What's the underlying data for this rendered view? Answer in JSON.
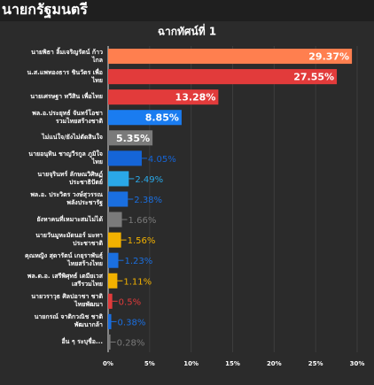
{
  "header": "นายกรัฐมนตรี",
  "chart_data": {
    "type": "bar",
    "orientation": "horizontal",
    "title": "ฉากทัศน์ที่ 1",
    "categories": [
      "นายพิธา ลิ้มเจริญรัตน์ ก้าวไกล",
      "น.ส.แพทองธาร ชินวัตร เพื่อไทย",
      "นายเศรษฐา ทวีสิน เพื่อไทย",
      "พล.อ.ประยุทธ์ จันทร์โอชา รวมไทยสร้างชาติ",
      "ไม่แน่ใจ/ยังไม่ตัดสินใจ",
      "นายอนุทิน ชาญวีรกูล ภูมิใจไทย",
      "นายจุรินทร์ ลักษณวิศิษฏ์ ประชาธิปัตย์",
      "พล.อ. ประวิตร วงษ์สุวรรณ พลังประชารัฐ",
      "ยังหาคนที่เหมาะสมไม่ได้",
      "นายวันมูหะมัดนอร์ มะทา ประชาชาติ",
      "คุณหญิง สุดารัตน์ เกยุราพันธุ์ ไทยสร้างไทย",
      "พล.ต.อ. เสรีพิศุทธ์ เตมียเวส เสรีรวมไทย",
      "นายวราวุธ ศิลปอาชา ชาติไทยพัฒนา",
      "นายกรณ์ จาติกวณิช ชาติพัฒนากล้า",
      "อื่น ๆ ระบุชื่อ..."
    ],
    "values": [
      29.37,
      27.55,
      13.28,
      8.85,
      5.35,
      4.05,
      2.49,
      2.38,
      1.66,
      1.56,
      1.23,
      1.11,
      0.5,
      0.38,
      0.28
    ],
    "value_labels": [
      "29.37%",
      "27.55%",
      "13.28%",
      "8.85%",
      "5.35%",
      "4.05%",
      "2.49%",
      "2.38%",
      "1.66%",
      "1.56%",
      "1.23%",
      "1.11%",
      "0.5%",
      "0.38%",
      "0.28%"
    ],
    "colors": [
      "#ff7f4f",
      "#e23b3b",
      "#e23b3b",
      "#1a7cf0",
      "#7a7a7a",
      "#1565d8",
      "#2aa8e8",
      "#1a6fe0",
      "#7a7a7a",
      "#f2b100",
      "#1a6fe0",
      "#f2b100",
      "#e23b3b",
      "#1a6fe0",
      "#7a7a7a"
    ],
    "xlim": [
      0,
      30
    ],
    "xticks": [
      {
        "value": 0,
        "label": "0%"
      },
      {
        "value": 5,
        "label": "5%"
      },
      {
        "value": 10,
        "label": "10%"
      },
      {
        "value": 15,
        "label": "15%"
      },
      {
        "value": 20,
        "label": "20%"
      },
      {
        "value": 25,
        "label": "25%"
      },
      {
        "value": 30,
        "label": "30%"
      }
    ],
    "grid": true
  }
}
